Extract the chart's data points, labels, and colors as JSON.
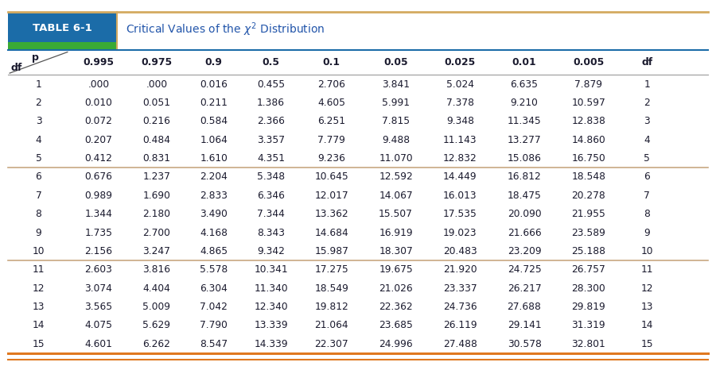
{
  "title_table": "TABLE 6-1",
  "title_desc": "Critical Values of the χ² Distribution",
  "col_headers": [
    "0.995",
    "0.975",
    "0.9",
    "0.5",
    "0.1",
    "0.05",
    "0.025",
    "0.01",
    "0.005"
  ],
  "rows": [
    [
      1,
      ".000",
      ".000",
      "0.016",
      "0.455",
      "2.706",
      "3.841",
      "5.024",
      "6.635",
      "7.879",
      1
    ],
    [
      2,
      "0.010",
      "0.051",
      "0.211",
      "1.386",
      "4.605",
      "5.991",
      "7.378",
      "9.210",
      "10.597",
      2
    ],
    [
      3,
      "0.072",
      "0.216",
      "0.584",
      "2.366",
      "6.251",
      "7.815",
      "9.348",
      "11.345",
      "12.838",
      3
    ],
    [
      4,
      "0.207",
      "0.484",
      "1.064",
      "3.357",
      "7.779",
      "9.488",
      "11.143",
      "13.277",
      "14.860",
      4
    ],
    [
      5,
      "0.412",
      "0.831",
      "1.610",
      "4.351",
      "9.236",
      "11.070",
      "12.832",
      "15.086",
      "16.750",
      5
    ],
    [
      6,
      "0.676",
      "1.237",
      "2.204",
      "5.348",
      "10.645",
      "12.592",
      "14.449",
      "16.812",
      "18.548",
      6
    ],
    [
      7,
      "0.989",
      "1.690",
      "2.833",
      "6.346",
      "12.017",
      "14.067",
      "16.013",
      "18.475",
      "20.278",
      7
    ],
    [
      8,
      "1.344",
      "2.180",
      "3.490",
      "7.344",
      "13.362",
      "15.507",
      "17.535",
      "20.090",
      "21.955",
      8
    ],
    [
      9,
      "1.735",
      "2.700",
      "4.168",
      "8.343",
      "14.684",
      "16.919",
      "19.023",
      "21.666",
      "23.589",
      9
    ],
    [
      10,
      "2.156",
      "3.247",
      "4.865",
      "9.342",
      "15.987",
      "18.307",
      "20.483",
      "23.209",
      "25.188",
      10
    ],
    [
      11,
      "2.603",
      "3.816",
      "5.578",
      "10.341",
      "17.275",
      "19.675",
      "21.920",
      "24.725",
      "26.757",
      11
    ],
    [
      12,
      "3.074",
      "4.404",
      "6.304",
      "11.340",
      "18.549",
      "21.026",
      "23.337",
      "26.217",
      "28.300",
      12
    ],
    [
      13,
      "3.565",
      "5.009",
      "7.042",
      "12.340",
      "19.812",
      "22.362",
      "24.736",
      "27.688",
      "29.819",
      13
    ],
    [
      14,
      "4.075",
      "5.629",
      "7.790",
      "13.339",
      "21.064",
      "23.685",
      "26.119",
      "29.141",
      "31.319",
      14
    ],
    [
      15,
      "4.601",
      "6.262",
      "8.547",
      "14.339",
      "22.307",
      "24.996",
      "27.488",
      "30.578",
      "32.801",
      15
    ]
  ],
  "group_separators": [
    5,
    10
  ],
  "bg_color": "#ffffff",
  "text_color_dark": "#1a1a2e",
  "diagonal_line_color": "#555555",
  "separator_color": "#c8a882",
  "bottom_border_color": "#e07820",
  "top_border_color": "#d4aa60",
  "blue_line_color": "#1b6ca8",
  "label_blue_bg": "#1b6ca8",
  "label_green_stripe": "#3aaa35",
  "title_text_color": "#2255aa",
  "col_boundaries": [
    0.01,
    0.095,
    0.178,
    0.258,
    0.338,
    0.418,
    0.508,
    0.598,
    0.688,
    0.778,
    0.868,
    0.942,
    0.99
  ]
}
